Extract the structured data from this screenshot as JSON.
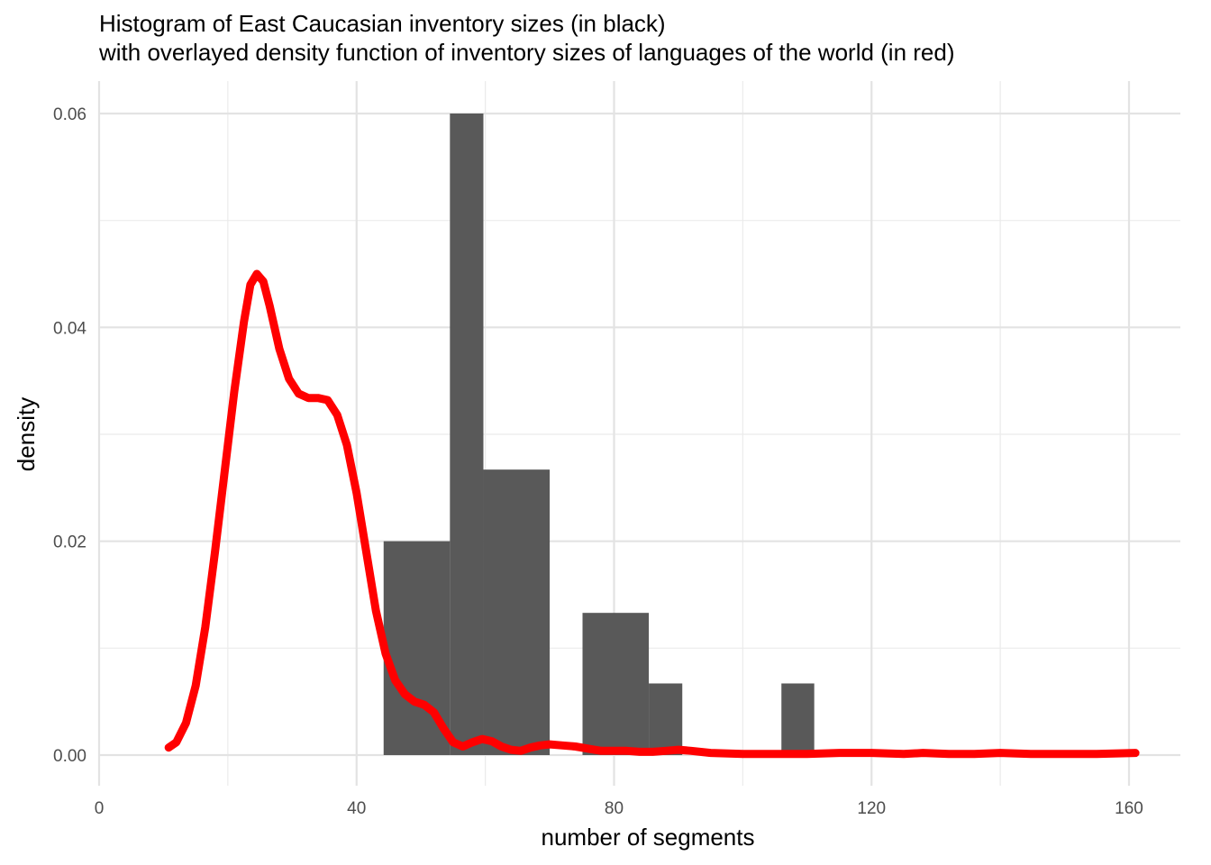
{
  "chart_data": {
    "type": "histogram",
    "title": "Histogram of East Caucasian inventory sizes (in black)",
    "subtitle": "with overlayed density function of inventory sizes of languages of the world (in red)",
    "xlabel": "number of segments",
    "ylabel": "density",
    "xlim": [
      0,
      160
    ],
    "ylim": [
      0,
      0.06
    ],
    "x_ticks": [
      0,
      40,
      80,
      120,
      160
    ],
    "y_ticks": [
      0.0,
      0.02,
      0.04,
      0.06
    ],
    "y_tick_labels": [
      "0.00",
      "0.02",
      "0.04",
      "0.06"
    ],
    "grid": true,
    "histogram": {
      "color": "#595959",
      "bins": [
        {
          "x0": 44.2,
          "x1": 54.5,
          "density": 0.02
        },
        {
          "x0": 54.5,
          "x1": 59.7,
          "density": 0.06
        },
        {
          "x0": 59.7,
          "x1": 70.0,
          "density": 0.0267
        },
        {
          "x0": 75.1,
          "x1": 85.4,
          "density": 0.0133
        },
        {
          "x0": 85.4,
          "x1": 90.6,
          "density": 0.0067
        },
        {
          "x0": 106.0,
          "x1": 111.1,
          "density": 0.0067
        }
      ]
    },
    "density_curve": {
      "color": "#ff0000",
      "points": [
        [
          10.8,
          0.0007
        ],
        [
          12.0,
          0.0012
        ],
        [
          13.5,
          0.003
        ],
        [
          15.0,
          0.0065
        ],
        [
          16.5,
          0.012
        ],
        [
          18.0,
          0.019
        ],
        [
          19.5,
          0.0265
        ],
        [
          21.0,
          0.034
        ],
        [
          22.5,
          0.0405
        ],
        [
          23.5,
          0.044
        ],
        [
          24.5,
          0.045
        ],
        [
          25.5,
          0.0443
        ],
        [
          26.5,
          0.042
        ],
        [
          28.0,
          0.038
        ],
        [
          29.5,
          0.0352
        ],
        [
          31.0,
          0.0338
        ],
        [
          32.5,
          0.0334
        ],
        [
          34.0,
          0.0334
        ],
        [
          35.5,
          0.0332
        ],
        [
          37.0,
          0.0318
        ],
        [
          38.5,
          0.029
        ],
        [
          40.0,
          0.0245
        ],
        [
          41.5,
          0.019
        ],
        [
          43.0,
          0.0135
        ],
        [
          44.5,
          0.0095
        ],
        [
          46.0,
          0.007
        ],
        [
          47.5,
          0.0057
        ],
        [
          49.0,
          0.005
        ],
        [
          50.5,
          0.0047
        ],
        [
          52.0,
          0.004
        ],
        [
          53.5,
          0.0025
        ],
        [
          55.0,
          0.0012
        ],
        [
          56.5,
          0.0008
        ],
        [
          58.0,
          0.0012
        ],
        [
          59.5,
          0.0015
        ],
        [
          61.0,
          0.0013
        ],
        [
          62.5,
          0.0008
        ],
        [
          64.0,
          0.0005
        ],
        [
          65.5,
          0.0004
        ],
        [
          67.0,
          0.0007
        ],
        [
          68.5,
          0.0009
        ],
        [
          70.0,
          0.001
        ],
        [
          72.0,
          0.0009
        ],
        [
          74.0,
          0.0008
        ],
        [
          76.0,
          0.0006
        ],
        [
          78.0,
          0.0004
        ],
        [
          80.0,
          0.0004
        ],
        [
          82.0,
          0.0004
        ],
        [
          84.0,
          0.0003
        ],
        [
          86.0,
          0.0003
        ],
        [
          88.0,
          0.0004
        ],
        [
          90.0,
          0.0005
        ],
        [
          92.0,
          0.0004
        ],
        [
          95.0,
          0.0002
        ],
        [
          100.0,
          0.0001
        ],
        [
          105.0,
          0.0001
        ],
        [
          110.0,
          0.0001
        ],
        [
          115.0,
          0.0002
        ],
        [
          120.0,
          0.0002
        ],
        [
          125.0,
          0.0001
        ],
        [
          128.0,
          0.0002
        ],
        [
          132.0,
          0.0001
        ],
        [
          136.0,
          0.0001
        ],
        [
          140.0,
          0.0002
        ],
        [
          145.0,
          0.0001
        ],
        [
          150.0,
          0.0001
        ],
        [
          155.0,
          0.0001
        ],
        [
          161.0,
          0.0002
        ]
      ]
    }
  }
}
